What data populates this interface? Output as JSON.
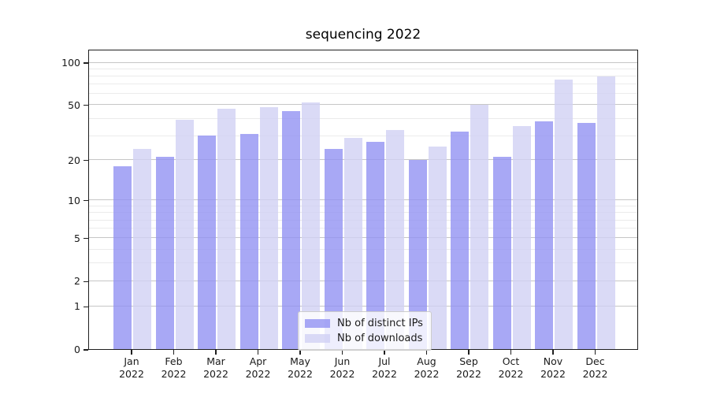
{
  "chart": {
    "title": "sequencing 2022"
  },
  "chart_data": {
    "type": "bar",
    "title": "sequencing 2022",
    "months": [
      "Jan",
      "Feb",
      "Mar",
      "Apr",
      "May",
      "Jun",
      "Jul",
      "Aug",
      "Sep",
      "Oct",
      "Nov",
      "Dec"
    ],
    "year_label": "2022",
    "series": [
      {
        "name": "Nb of distinct IPs",
        "color": "#8f8ff2",
        "values": [
          18,
          21,
          30,
          31,
          45,
          24,
          27,
          20,
          32,
          21,
          38,
          37
        ]
      },
      {
        "name": "Nb of downloads",
        "color": "#cfcff4",
        "values": [
          24,
          39,
          47,
          48,
          52,
          29,
          33,
          25,
          50,
          35,
          75,
          79
        ]
      }
    ],
    "yscale": "log1p",
    "ylim": [
      0,
      123
    ],
    "yticks": [
      0,
      1,
      2,
      5,
      10,
      20,
      50,
      100
    ],
    "yticks_minor": [
      3,
      4,
      6,
      7,
      8,
      9,
      30,
      40,
      60,
      70,
      80,
      90
    ],
    "grid": "on",
    "legend_position": "lower center",
    "colors": {
      "major_grid": "#c6c6c6",
      "minor_grid": "#ebebeb",
      "spine": "#1f1f1f",
      "text": "#1a1a1a"
    }
  }
}
